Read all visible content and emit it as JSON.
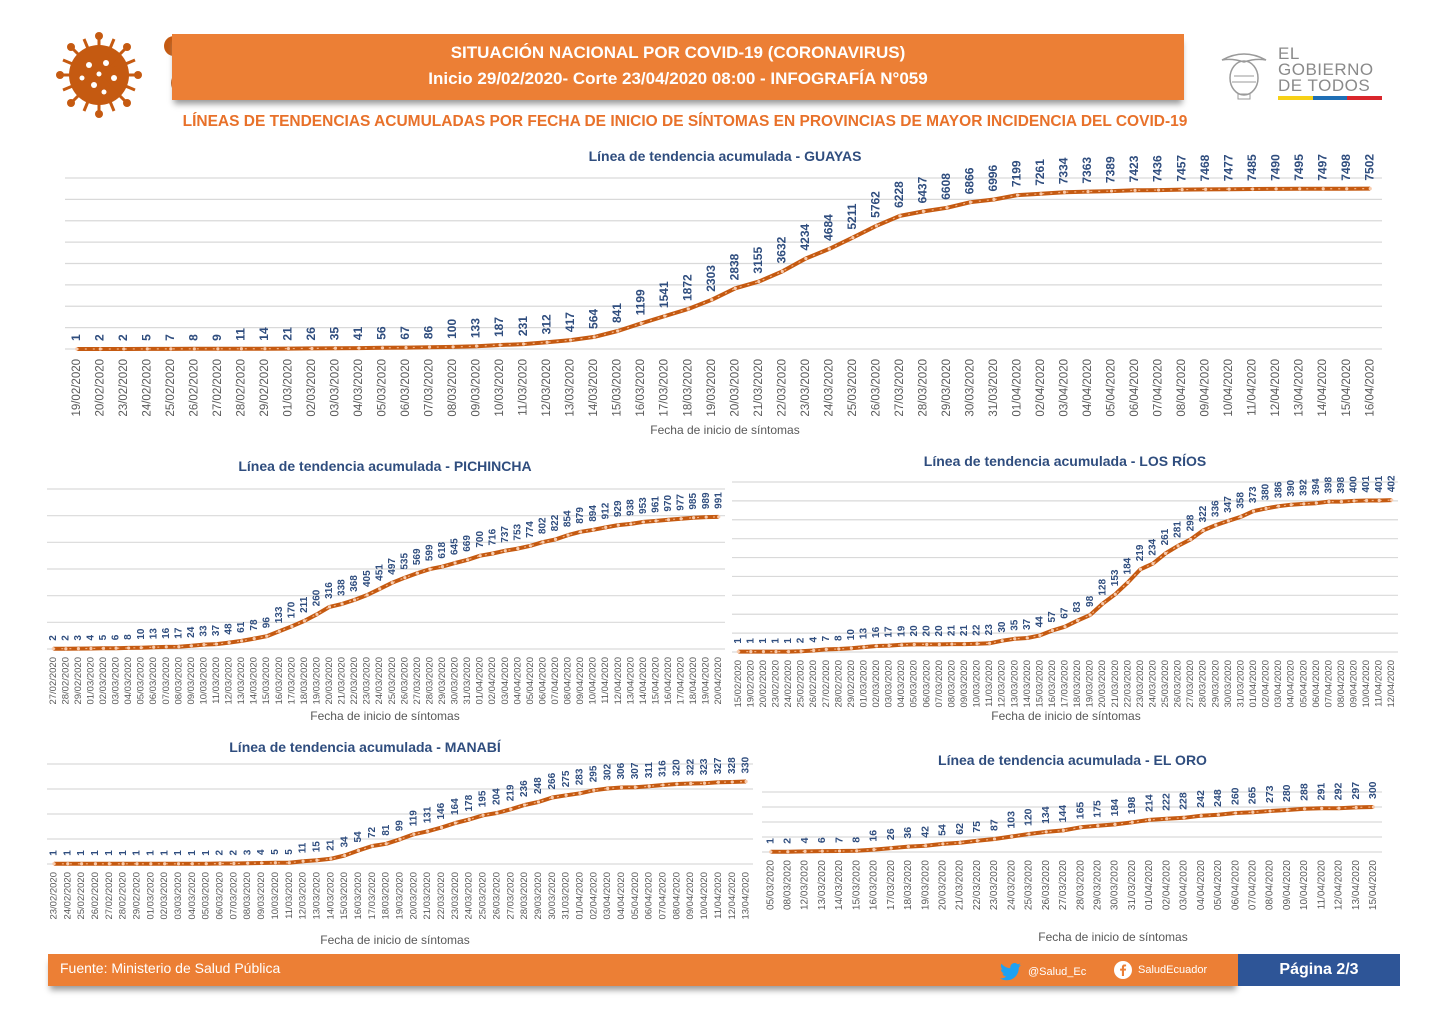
{
  "header": {
    "line1": "SITUACIÓN NACIONAL POR  COVID-19 (CORONAVIRUS)",
    "line2": "Inicio 29/02/2020- Corte 23/04/2020 08:00  - INFOGRAFÍA N°059",
    "subtitle": "LÍNEAS DE TENDENCIAS ACUMULADAS POR FECHA DE INICIO DE SÍNTOMAS EN PROVINCIAS DE MAYOR INCIDENCIA DEL COVID-19"
  },
  "logo": {
    "line1": "EL",
    "line2": "GOBIERNO",
    "line3": "DE TODOS",
    "flag_colors": [
      "#f7d117",
      "#1f6fb5",
      "#d9262c"
    ]
  },
  "colors": {
    "accent_orange": "#ec7f35",
    "line_color": "#c55a11",
    "label_blue": "#2f4d7e",
    "page_blue": "#2e5597"
  },
  "footer": {
    "source": "Fuente: Ministerio de Salud Pública",
    "twitter": "@Salud_Ec",
    "facebook": "SaludEcuador",
    "page": "Página 2/3"
  },
  "chart_data": [
    {
      "id": "guayas",
      "type": "line",
      "title": "Línea de tendencia acumulada - GUAYAS",
      "xlabel": "Fecha de inicio de síntomas",
      "ylabel": "",
      "grid": true,
      "categories": [
        "19/02/2020",
        "20/02/2020",
        "23/02/2020",
        "24/02/2020",
        "25/02/2020",
        "26/02/2020",
        "27/02/2020",
        "28/02/2020",
        "29/02/2020",
        "01/03/2020",
        "02/03/2020",
        "03/03/2020",
        "04/03/2020",
        "05/03/2020",
        "06/03/2020",
        "07/03/2020",
        "08/03/2020",
        "09/03/2020",
        "10/03/2020",
        "11/03/2020",
        "12/03/2020",
        "13/03/2020",
        "14/03/2020",
        "15/03/2020",
        "16/03/2020",
        "17/03/2020",
        "18/03/2020",
        "19/03/2020",
        "20/03/2020",
        "21/03/2020",
        "22/03/2020",
        "23/03/2020",
        "24/03/2020",
        "25/03/2020",
        "26/03/2020",
        "27/03/2020",
        "28/03/2020",
        "29/03/2020",
        "30/03/2020",
        "31/03/2020",
        "01/04/2020",
        "02/04/2020",
        "03/04/2020",
        "04/04/2020",
        "05/04/2020",
        "06/04/2020",
        "07/04/2020",
        "08/04/2020",
        "09/04/2020",
        "10/04/2020",
        "11/04/2020",
        "12/04/2020",
        "13/04/2020",
        "14/04/2020",
        "15/04/2020",
        "16/04/2020"
      ],
      "values": [
        1,
        2,
        2,
        5,
        7,
        8,
        9,
        11,
        14,
        21,
        26,
        35,
        41,
        56,
        67,
        86,
        100,
        133,
        187,
        231,
        312,
        417,
        564,
        841,
        1199,
        1541,
        1872,
        2303,
        2838,
        3155,
        3632,
        4234,
        4684,
        5211,
        5762,
        6228,
        6437,
        6608,
        6866,
        6996,
        7199,
        7261,
        7334,
        7363,
        7389,
        7423,
        7436,
        7457,
        7468,
        7477,
        7485,
        7490,
        7495,
        7497,
        7498,
        7502
      ],
      "ylim": [
        0,
        8000
      ]
    },
    {
      "id": "pichincha",
      "type": "line",
      "title": "Línea de tendencia acumulada - PICHINCHA",
      "xlabel": "Fecha de inicio de síntomas",
      "ylabel": "",
      "grid": true,
      "categories": [
        "27/02/2020",
        "28/02/2020",
        "29/02/2020",
        "01/03/2020",
        "02/03/2020",
        "03/03/2020",
        "04/03/2020",
        "05/03/2020",
        "06/03/2020",
        "07/03/2020",
        "08/03/2020",
        "09/03/2020",
        "10/03/2020",
        "11/03/2020",
        "12/03/2020",
        "13/03/2020",
        "14/03/2020",
        "15/03/2020",
        "16/03/2020",
        "17/03/2020",
        "18/03/2020",
        "19/03/2020",
        "20/03/2020",
        "21/03/2020",
        "22/03/2020",
        "23/03/2020",
        "24/03/2020",
        "25/03/2020",
        "26/03/2020",
        "27/03/2020",
        "28/03/2020",
        "29/03/2020",
        "30/03/2020",
        "31/03/2020",
        "01/04/2020",
        "02/04/2020",
        "03/04/2020",
        "04/04/2020",
        "05/04/2020",
        "06/04/2020",
        "07/04/2020",
        "08/04/2020",
        "09/04/2020",
        "10/04/2020",
        "11/04/2020",
        "12/04/2020",
        "13/04/2020",
        "14/04/2020",
        "15/04/2020",
        "16/04/2020",
        "17/04/2020",
        "18/04/2020",
        "19/04/2020",
        "20/04/2020"
      ],
      "values": [
        2,
        2,
        3,
        4,
        5,
        6,
        8,
        10,
        13,
        16,
        17,
        24,
        33,
        37,
        48,
        61,
        78,
        96,
        133,
        170,
        211,
        260,
        316,
        338,
        368,
        405,
        451,
        497,
        535,
        569,
        599,
        618,
        645,
        669,
        700,
        716,
        737,
        753,
        774,
        802,
        822,
        854,
        879,
        894,
        912,
        929,
        938,
        953,
        961,
        970,
        977,
        985,
        989,
        991
      ],
      "ylim": [
        0,
        1200
      ]
    },
    {
      "id": "los-rios",
      "type": "line",
      "title": "Línea de tendencia acumulada - LOS RÍOS",
      "xlabel": "Fecha de inicio de síntomas",
      "ylabel": "",
      "grid": true,
      "categories": [
        "15/02/2020",
        "19/02/2020",
        "20/02/2020",
        "23/02/2020",
        "24/02/2020",
        "25/02/2020",
        "26/02/2020",
        "27/02/2020",
        "28/02/2020",
        "29/02/2020",
        "01/03/2020",
        "02/03/2020",
        "03/03/2020",
        "04/03/2020",
        "05/03/2020",
        "06/03/2020",
        "07/03/2020",
        "08/03/2020",
        "09/03/2020",
        "10/03/2020",
        "11/03/2020",
        "12/03/2020",
        "13/03/2020",
        "14/03/2020",
        "15/03/2020",
        "16/03/2020",
        "17/03/2020",
        "18/03/2020",
        "19/03/2020",
        "20/03/2020",
        "21/03/2020",
        "22/03/2020",
        "23/03/2020",
        "24/03/2020",
        "25/03/2020",
        "26/03/2020",
        "27/03/2020",
        "28/03/2020",
        "29/03/2020",
        "30/03/2020",
        "31/03/2020",
        "01/04/2020",
        "02/04/2020",
        "03/04/2020",
        "04/04/2020",
        "05/04/2020",
        "06/04/2020",
        "07/04/2020",
        "08/04/2020",
        "09/04/2020",
        "10/04/2020",
        "11/04/2020",
        "12/04/2020"
      ],
      "values": [
        1,
        1,
        1,
        1,
        1,
        2,
        4,
        7,
        8,
        10,
        13,
        16,
        17,
        19,
        20,
        20,
        20,
        21,
        21,
        22,
        23,
        30,
        35,
        37,
        44,
        57,
        67,
        83,
        98,
        128,
        153,
        184,
        219,
        234,
        261,
        281,
        298,
        322,
        336,
        347,
        358,
        373,
        380,
        386,
        390,
        392,
        394,
        398,
        398,
        400,
        401,
        401,
        402
      ],
      "ylim": [
        0,
        450
      ]
    },
    {
      "id": "manabi",
      "type": "line",
      "title": "Línea de tendencia acumulada - MANABÍ",
      "xlabel": "Fecha de inicio de síntomas",
      "ylabel": "",
      "grid": true,
      "categories": [
        "23/02/2020",
        "24/02/2020",
        "25/02/2020",
        "26/02/2020",
        "27/02/2020",
        "28/02/2020",
        "29/02/2020",
        "01/03/2020",
        "02/03/2020",
        "03/03/2020",
        "04/03/2020",
        "05/03/2020",
        "06/03/2020",
        "07/03/2020",
        "08/03/2020",
        "09/03/2020",
        "10/03/2020",
        "11/03/2020",
        "12/03/2020",
        "13/03/2020",
        "14/03/2020",
        "15/03/2020",
        "16/03/2020",
        "17/03/2020",
        "18/03/2020",
        "19/03/2020",
        "20/03/2020",
        "21/03/2020",
        "22/03/2020",
        "23/03/2020",
        "24/03/2020",
        "25/03/2020",
        "26/03/2020",
        "27/03/2020",
        "28/03/2020",
        "29/03/2020",
        "30/03/2020",
        "31/03/2020",
        "01/04/2020",
        "02/04/2020",
        "03/04/2020",
        "04/04/2020",
        "05/04/2020",
        "06/04/2020",
        "07/04/2020",
        "08/04/2020",
        "09/04/2020",
        "10/04/2020",
        "11/04/2020",
        "12/04/2020",
        "13/04/2020"
      ],
      "values": [
        1,
        1,
        1,
        1,
        1,
        1,
        1,
        1,
        1,
        1,
        1,
        1,
        2,
        2,
        3,
        4,
        5,
        5,
        11,
        15,
        21,
        34,
        54,
        72,
        81,
        99,
        119,
        131,
        146,
        164,
        178,
        195,
        204,
        219,
        236,
        248,
        266,
        275,
        283,
        295,
        302,
        306,
        307,
        311,
        316,
        320,
        322,
        323,
        327,
        328,
        330
      ],
      "ylim": [
        0,
        400
      ]
    },
    {
      "id": "el-oro",
      "type": "line",
      "title": "Línea de tendencia acumulada - EL ORO",
      "xlabel": "Fecha de inicio de síntomas",
      "ylabel": "",
      "grid": true,
      "categories": [
        "05/03/2020",
        "08/03/2020",
        "12/03/2020",
        "13/03/2020",
        "14/03/2020",
        "15/03/2020",
        "16/03/2020",
        "17/03/2020",
        "18/03/2020",
        "19/03/2020",
        "20/03/2020",
        "21/03/2020",
        "22/03/2020",
        "23/03/2020",
        "24/03/2020",
        "25/03/2020",
        "26/03/2020",
        "27/03/2020",
        "28/03/2020",
        "29/03/2020",
        "30/03/2020",
        "31/03/2020",
        "01/04/2020",
        "02/04/2020",
        "03/04/2020",
        "04/04/2020",
        "05/04/2020",
        "06/04/2020",
        "07/04/2020",
        "08/04/2020",
        "09/04/2020",
        "10/04/2020",
        "11/04/2020",
        "12/04/2020",
        "13/04/2020",
        "15/04/2020"
      ],
      "values": [
        1,
        2,
        4,
        6,
        7,
        8,
        16,
        26,
        36,
        42,
        54,
        62,
        75,
        87,
        103,
        120,
        134,
        144,
        165,
        175,
        184,
        198,
        214,
        222,
        228,
        242,
        248,
        260,
        265,
        273,
        280,
        288,
        291,
        292,
        297,
        300
      ],
      "ylim": [
        0,
        400
      ]
    }
  ]
}
